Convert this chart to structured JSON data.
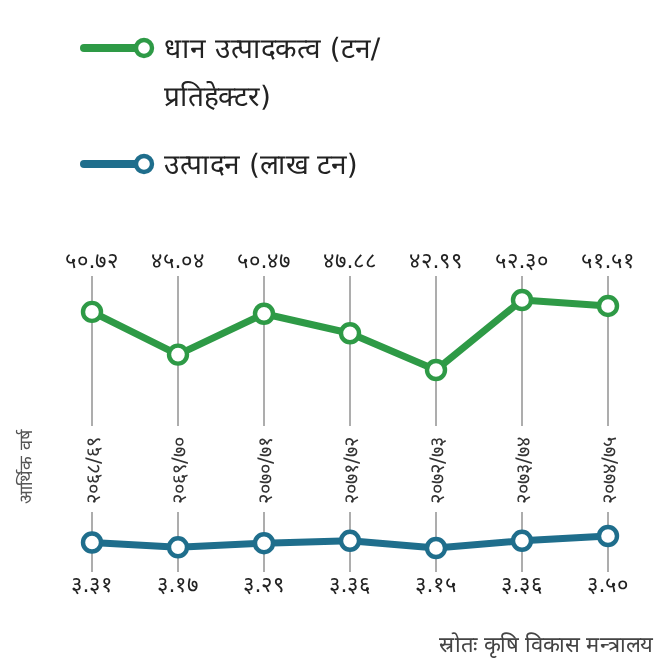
{
  "chart_data": [
    {
      "type": "line",
      "categories": [
        "२०६८/६९",
        "२०६९/७०",
        "२०७०/७१",
        "२०७१/७२",
        "२०७२/७३",
        "२०७३/७४",
        "२०७४/७५"
      ],
      "ylabel": "आर्थिक वर्ष",
      "legend": "top left",
      "marker": "circle",
      "line_style": "solid",
      "grid": "x",
      "series": [
        {
          "name": "धान उत्पादकत्व (टन/प्रतिहेक्टर)",
          "color": "#2e9a46",
          "values": [
            50.72,
            45.04,
            50.47,
            47.88,
            42.99,
            52.3,
            51.51
          ],
          "value_labels": [
            "५०.७२",
            "४५.०४",
            "५०.४७",
            "४७.८८",
            "४२.९९",
            "५२.३०",
            "५१.५१"
          ]
        }
      ]
    },
    {
      "type": "line",
      "categories": [
        null,
        null,
        null,
        null,
        null,
        null,
        null
      ],
      "legend": "top left",
      "marker": "circle",
      "line_style": "solid",
      "grid": "x",
      "series": [
        {
          "name": "उत्पादन (लाख टन)",
          "color": "#1f6e8c",
          "values": [
            3.31,
            3.17,
            3.29,
            3.36,
            3.15,
            3.36,
            3.5
          ],
          "value_labels": [
            "३.३१",
            "३.१७",
            "३.२९",
            "३.३६",
            "३.१५",
            "३.३६",
            "३.५०"
          ]
        }
      ],
      "annotations": [
        "स्रोतः कृषि विकास मन्त्रालय"
      ]
    }
  ]
}
